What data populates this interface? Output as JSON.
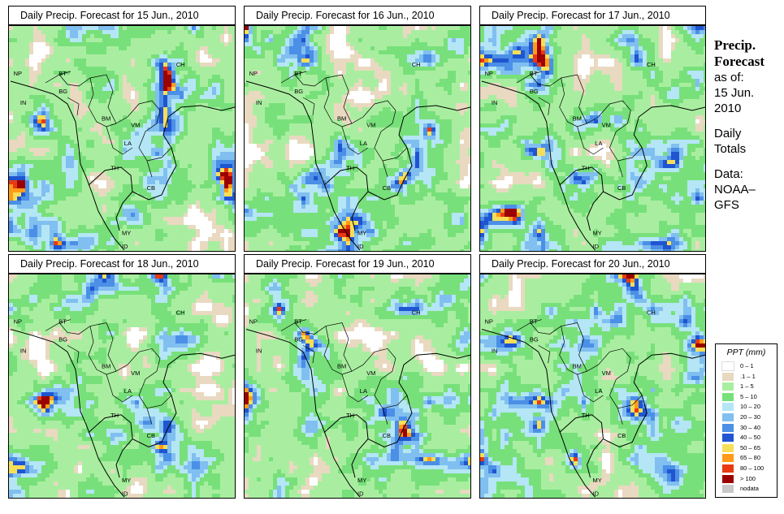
{
  "panels": [
    {
      "title": "Daily Precip. Forecast for  15 Jun., 2010"
    },
    {
      "title": "Daily Precip. Forecast for  16 Jun., 2010"
    },
    {
      "title": "Daily Precip. Forecast for  17 Jun., 2010"
    },
    {
      "title": "Daily Precip. Forecast for  18 Jun., 2010"
    },
    {
      "title": "Daily Precip. Forecast for  19 Jun., 2010"
    },
    {
      "title": "Daily Precip. Forecast for  20 Jun., 2010"
    }
  ],
  "country_labels": [
    "NP",
    "BT",
    "IN",
    "BG",
    "CH",
    "BM",
    "VM",
    "LA",
    "TH",
    "CB",
    "MY",
    "ID"
  ],
  "sidebar": {
    "title_line1": "Precip.",
    "title_line2": "Forecast",
    "asof_line1": "as of:",
    "asof_line2": "15 Jun.",
    "asof_line3": "2010",
    "totals_line1": "Daily",
    "totals_line2": "Totals",
    "source_line1": "Data:",
    "source_line2": "NOAA–",
    "source_line3": "GFS"
  },
  "legend": {
    "title": "PPT (mm)",
    "entries": [
      {
        "label": "0 – 1",
        "color": "#ffffff"
      },
      {
        "label": ".1 – 1",
        "color": "#e8d9c0"
      },
      {
        "label": "1 – 5",
        "color": "#a9eea0"
      },
      {
        "label": "5 – 10",
        "color": "#78e07a"
      },
      {
        "label": "10 – 20",
        "color": "#b4e6f5"
      },
      {
        "label": "20 – 30",
        "color": "#80bff0"
      },
      {
        "label": "30 – 40",
        "color": "#4b8fe6"
      },
      {
        "label": "40 – 50",
        "color": "#1f55d0"
      },
      {
        "label": "50 – 65",
        "color": "#f6df58"
      },
      {
        "label": "65 – 80",
        "color": "#ff9b18"
      },
      {
        "label": "80 – 100",
        "color": "#e83a12"
      },
      {
        "label": "> 100",
        "color": "#9c0000"
      },
      {
        "label": "nodata",
        "color": "#c8c8c8"
      }
    ]
  }
}
